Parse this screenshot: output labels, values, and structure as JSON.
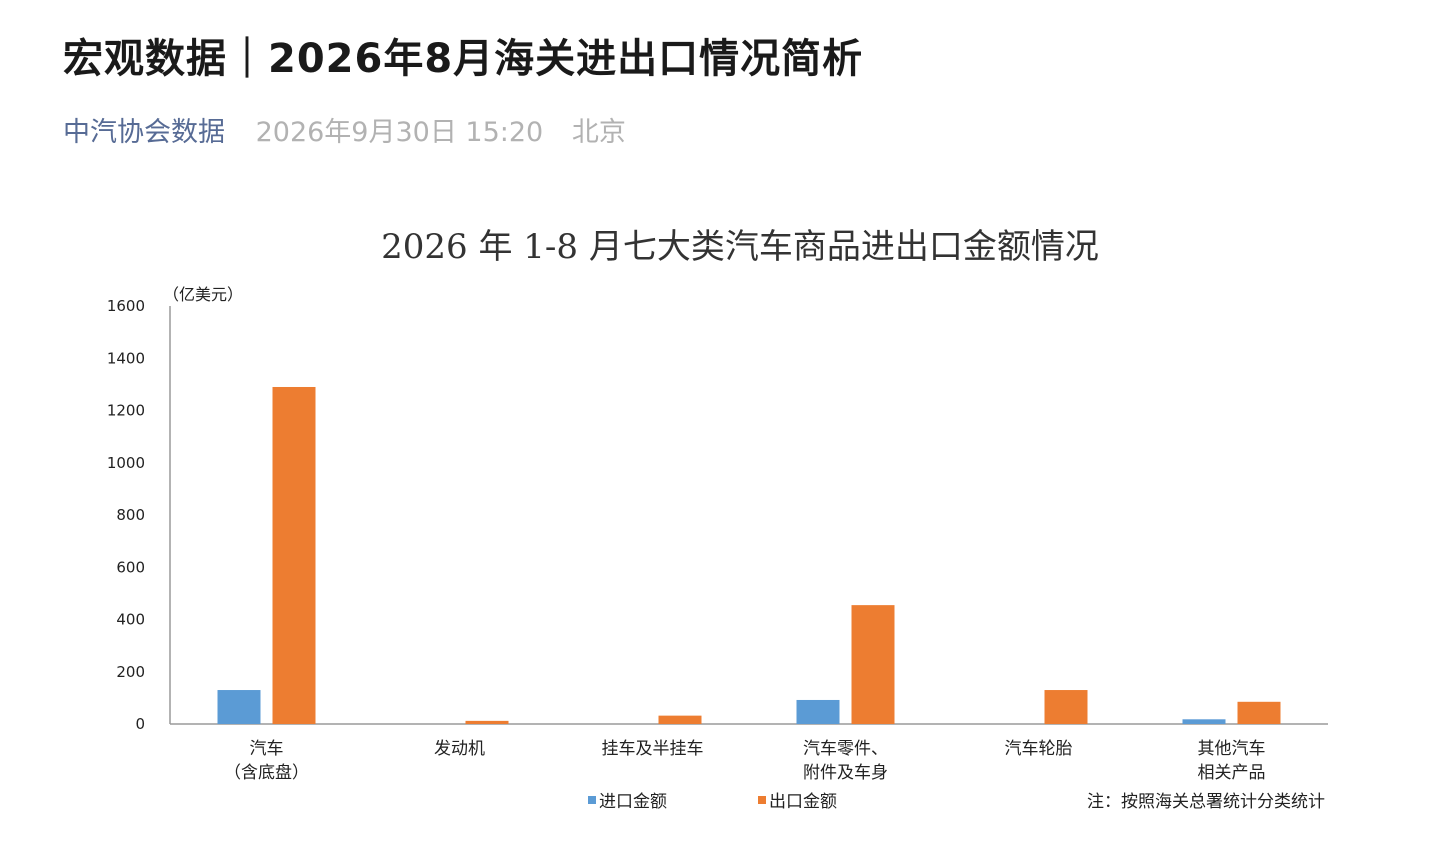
{
  "article": {
    "title": "宏观数据｜2026年8月海关进出口情况简析",
    "source": "中汽协会数据",
    "datetime": "2026年9月30日 15:20",
    "location": "北京"
  },
  "chart_data": {
    "type": "bar",
    "title": "2026 年 1-8 月七大类汽车商品进出口金额情况",
    "ylabel": "（亿美元）",
    "xlabel": "",
    "ylim": [
      0,
      1600
    ],
    "yticks": [
      0,
      200,
      400,
      600,
      800,
      1000,
      1200,
      1400,
      1600
    ],
    "grid": false,
    "legend": "bottom",
    "categories": [
      [
        "汽车",
        "（含底盘）"
      ],
      [
        "发动机"
      ],
      [
        "挂车及半挂车"
      ],
      [
        "汽车零件、",
        "附件及车身"
      ],
      [
        "汽车轮胎"
      ],
      [
        "其他汽车",
        "相关产品"
      ]
    ],
    "series": [
      {
        "name": "进口金额",
        "color": "#5b9bd5",
        "values": [
          130,
          0,
          0,
          92,
          0,
          18
        ]
      },
      {
        "name": "出口金额",
        "color": "#ed7d31",
        "values": [
          1290,
          12,
          32,
          455,
          130,
          85
        ]
      }
    ],
    "note": "注：按照海关总署统计分类统计"
  }
}
